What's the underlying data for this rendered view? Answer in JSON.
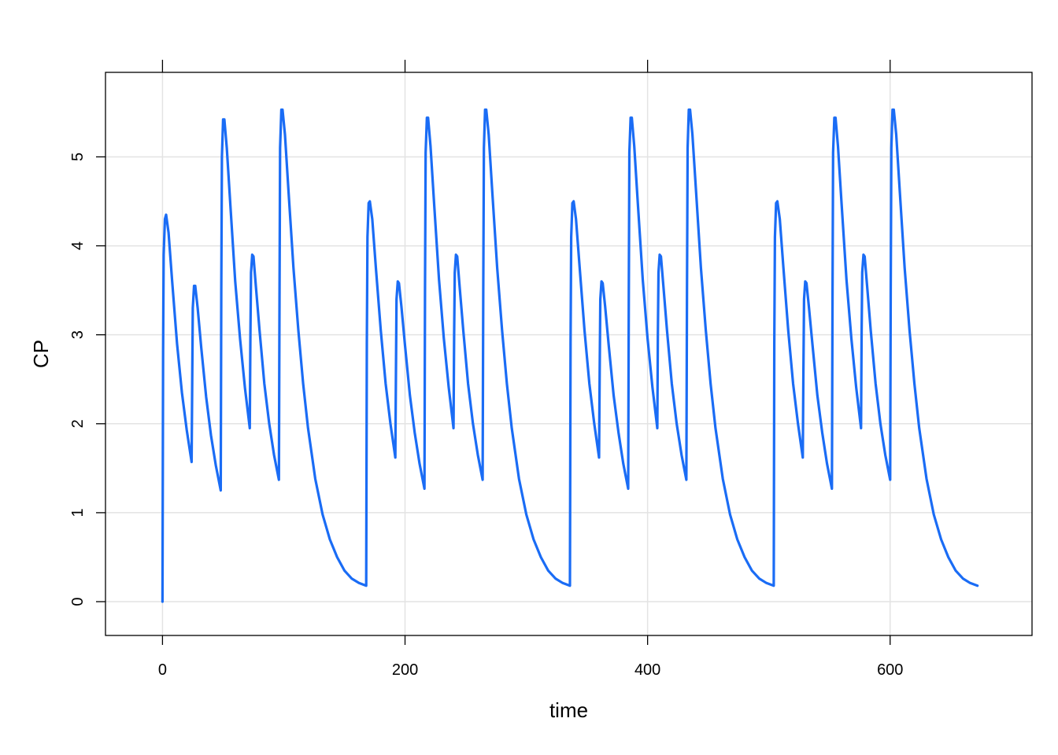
{
  "chart_data": {
    "type": "line",
    "title": "",
    "xlabel": "time",
    "ylabel": "CP",
    "xlim": [
      -47,
      717
    ],
    "ylim": [
      -0.38,
      5.95
    ],
    "xticks": [
      0,
      200,
      400,
      600
    ],
    "yticks": [
      0,
      1,
      2,
      3,
      4,
      5
    ],
    "grid": true,
    "line_color": "#1a6cf5",
    "series": [
      {
        "x": [
          0,
          0.5,
          1,
          2,
          3,
          5,
          8,
          12,
          16,
          20,
          24,
          24.5,
          25,
          26,
          27,
          29,
          32,
          36,
          40,
          44,
          48,
          48.5,
          49,
          50,
          51,
          53,
          56,
          60,
          64,
          68,
          72,
          72.5,
          73,
          74,
          75,
          77,
          80,
          84,
          88,
          92,
          96,
          96.5,
          97,
          98,
          99,
          101,
          104,
          108,
          112,
          116,
          120,
          126,
          132,
          138,
          144,
          150,
          156,
          162,
          168,
          168.5,
          169,
          170,
          171,
          173,
          176,
          180,
          184,
          188,
          192,
          192.5,
          193,
          194,
          195,
          197,
          200,
          204,
          208,
          212,
          216,
          216.5,
          217,
          218,
          219,
          221,
          224,
          228,
          232,
          236,
          240,
          240.5,
          241,
          242,
          243,
          245,
          248,
          252,
          256,
          260,
          264,
          264.5,
          265,
          266,
          267,
          269,
          272,
          276,
          280,
          284,
          288,
          294,
          300,
          306,
          312,
          318,
          324,
          330,
          336,
          336.5,
          337,
          338,
          339,
          341,
          344,
          348,
          352,
          356,
          360,
          360.5,
          361,
          362,
          363,
          365,
          368,
          372,
          376,
          380,
          384,
          384.5,
          385,
          386,
          387,
          389,
          392,
          396,
          400,
          404,
          408,
          408.5,
          409,
          410,
          411,
          413,
          416,
          420,
          424,
          428,
          432,
          432.5,
          433,
          434,
          435,
          437,
          440,
          444,
          448,
          452,
          456,
          462,
          468,
          474,
          480,
          486,
          492,
          498,
          504,
          504.5,
          505,
          506,
          507,
          509,
          512,
          516,
          520,
          524,
          528,
          528.5,
          529,
          530,
          531,
          533,
          536,
          540,
          544,
          548,
          552,
          552.5,
          553,
          554,
          555,
          557,
          560,
          564,
          568,
          572,
          576,
          576.5,
          577,
          578,
          579,
          581,
          584,
          588,
          592,
          596,
          600,
          600.5,
          601,
          602,
          603,
          605,
          608,
          612,
          616,
          620,
          624,
          630,
          636,
          642,
          648,
          654,
          660,
          666,
          672
        ],
        "y": [
          0,
          2.8,
          3.9,
          4.3,
          4.35,
          4.15,
          3.6,
          2.9,
          2.35,
          1.93,
          1.57,
          2.5,
          3.3,
          3.55,
          3.55,
          3.3,
          2.85,
          2.3,
          1.87,
          1.53,
          1.25,
          3.5,
          5.0,
          5.42,
          5.42,
          5.1,
          4.45,
          3.6,
          2.95,
          2.4,
          1.95,
          3.0,
          3.7,
          3.9,
          3.88,
          3.55,
          3.05,
          2.45,
          2.0,
          1.65,
          1.37,
          3.5,
          5.1,
          5.53,
          5.53,
          5.25,
          4.6,
          3.75,
          3.05,
          2.45,
          1.95,
          1.38,
          0.98,
          0.7,
          0.5,
          0.35,
          0.26,
          0.21,
          0.18,
          2.9,
          4.1,
          4.48,
          4.5,
          4.3,
          3.75,
          3.05,
          2.45,
          2.0,
          1.62,
          2.6,
          3.4,
          3.6,
          3.58,
          3.32,
          2.88,
          2.32,
          1.9,
          1.55,
          1.27,
          3.5,
          5.05,
          5.44,
          5.44,
          5.12,
          4.47,
          3.62,
          2.96,
          2.41,
          1.95,
          3.0,
          3.7,
          3.9,
          3.88,
          3.55,
          3.05,
          2.45,
          2.0,
          1.65,
          1.37,
          3.5,
          5.1,
          5.53,
          5.53,
          5.25,
          4.6,
          3.75,
          3.05,
          2.45,
          1.95,
          1.38,
          0.98,
          0.7,
          0.5,
          0.35,
          0.26,
          0.21,
          0.18,
          2.9,
          4.1,
          4.48,
          4.5,
          4.3,
          3.75,
          3.05,
          2.45,
          2.0,
          1.62,
          2.6,
          3.4,
          3.6,
          3.58,
          3.32,
          2.88,
          2.32,
          1.9,
          1.55,
          1.27,
          3.5,
          5.05,
          5.44,
          5.44,
          5.12,
          4.47,
          3.62,
          2.96,
          2.41,
          1.95,
          3.0,
          3.7,
          3.9,
          3.88,
          3.55,
          3.05,
          2.45,
          2.0,
          1.65,
          1.37,
          3.5,
          5.1,
          5.53,
          5.53,
          5.25,
          4.6,
          3.75,
          3.05,
          2.45,
          1.95,
          1.38,
          0.98,
          0.7,
          0.5,
          0.35,
          0.26,
          0.21,
          0.18,
          2.9,
          4.1,
          4.48,
          4.5,
          4.3,
          3.75,
          3.05,
          2.45,
          2.0,
          1.62,
          2.6,
          3.4,
          3.6,
          3.58,
          3.32,
          2.88,
          2.32,
          1.9,
          1.55,
          1.27,
          3.5,
          5.05,
          5.44,
          5.44,
          5.12,
          4.47,
          3.62,
          2.96,
          2.41,
          1.95,
          3.0,
          3.7,
          3.9,
          3.88,
          3.55,
          3.05,
          2.45,
          2.0,
          1.65,
          1.37,
          3.5,
          5.1,
          5.53,
          5.53,
          5.25,
          4.6,
          3.75,
          3.05,
          2.45,
          1.95,
          1.38,
          0.98,
          0.7,
          0.5,
          0.35,
          0.26,
          0.21,
          0.18
        ]
      }
    ]
  }
}
